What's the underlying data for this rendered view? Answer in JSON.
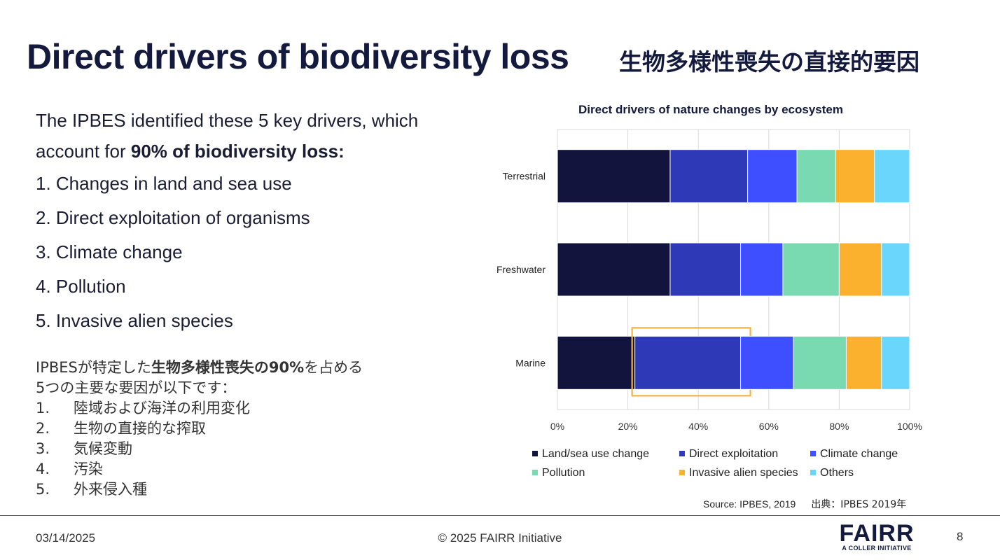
{
  "title": {
    "en": "Direct drivers of biodiversity loss",
    "ja": "生物多様性喪失の直接的要因"
  },
  "intro": {
    "text": "The IPBES identified these 5 key drivers, which account for ",
    "bold": "90% of biodiversity loss:"
  },
  "drivers": [
    "1. Changes in land and sea use",
    "2. Direct exploitation of organisms",
    "3. Climate change",
    "4. Pollution",
    "5. Invasive alien species"
  ],
  "ja_block": {
    "intro_prefix": "IPBESが特定した",
    "intro_bold": "生物多様性喪失の90%",
    "intro_suffix": "を占める",
    "line2": "5つの主要な要因が以下です：",
    "items": [
      {
        "num": "1.",
        "text": "陸域および海洋の利用変化"
      },
      {
        "num": "2.",
        "text": "生物の直接的な搾取"
      },
      {
        "num": "3.",
        "text": "気候変動"
      },
      {
        "num": "4.",
        "text": "汚染"
      },
      {
        "num": "5.",
        "text": "外来侵入種"
      }
    ]
  },
  "chart_data": {
    "type": "bar",
    "orientation": "horizontal",
    "stacked": true,
    "title": "Direct drivers of nature changes by ecosystem",
    "categories": [
      "Terrestrial",
      "Freshwater",
      "Marine"
    ],
    "series": [
      {
        "name": "Land/sea use change",
        "color": "#12143d",
        "values": [
          32,
          32,
          22
        ]
      },
      {
        "name": "Direct exploitation",
        "color": "#2e39b7",
        "values": [
          22,
          20,
          30
        ]
      },
      {
        "name": "Climate change",
        "color": "#3d4fff",
        "values": [
          14,
          12,
          15
        ]
      },
      {
        "name": "Pollution",
        "color": "#79d9b0",
        "values": [
          11,
          16,
          15
        ]
      },
      {
        "name": "Invasive alien species",
        "color": "#fbb02e",
        "values": [
          11,
          12,
          10
        ]
      },
      {
        "name": "Others",
        "color": "#6ad6fb",
        "values": [
          10,
          8,
          8
        ]
      }
    ],
    "xlim": [
      0,
      100
    ],
    "xticks": [
      "0%",
      "20%",
      "40%",
      "60%",
      "80%",
      "100%"
    ],
    "grid": true,
    "legend_position": "bottom",
    "highlight": {
      "category": "Marine",
      "series": "Direct exploitation",
      "color": "#f5b245"
    }
  },
  "source": {
    "en": "Source: IPBES, 2019",
    "ja": "出典：IPBES 2019年"
  },
  "footer": {
    "date": "03/14/2025",
    "copyright": "© 2025 FAIRR Initiative",
    "page": "8"
  },
  "logo": {
    "name": "FAIRR",
    "tagline": "A COLLER INITIATIVE"
  }
}
